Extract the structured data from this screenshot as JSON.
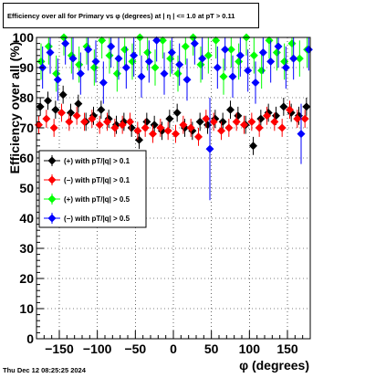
{
  "header": {
    "title": "Efficiency over all for Primary vs φ (degrees) at |   η  | <= 1.0 at pT > 0.11"
  },
  "footer": {
    "timestamp": "Thu Dec 12 08:25:25 2024"
  },
  "chart_data": {
    "type": "scatter",
    "title": "Efficiency over all for Primary vs φ (degrees) at |   η  | <= 1.0 at pT > 0.11",
    "xlabel": "φ (degrees)",
    "ylabel": "Efficiency over all (%)",
    "xlim": [
      -180,
      180
    ],
    "ylim": [
      0,
      100
    ],
    "x_ticks": [
      -150,
      -100,
      -50,
      0,
      50,
      100,
      150
    ],
    "x_tick_labels": [
      "−150",
      "−100",
      "−50",
      "0",
      "50",
      "100",
      "150"
    ],
    "y_ticks": [
      0,
      10,
      20,
      30,
      40,
      50,
      60,
      70,
      80,
      90,
      100
    ],
    "y_tick_labels": [
      "0",
      "10",
      "20",
      "30",
      "40",
      "50",
      "60",
      "70",
      "80",
      "90",
      "100"
    ],
    "grid": true,
    "legend_position": "left-middle",
    "series": [
      {
        "name": "(+) with pT/|q| > 0.1",
        "color": "#000000",
        "x": [
          -175,
          -165,
          -155,
          -145,
          -135,
          -125,
          -115,
          -105,
          -95,
          -85,
          -75,
          -65,
          -55,
          -45,
          -35,
          -25,
          -15,
          -5,
          5,
          15,
          25,
          35,
          45,
          55,
          65,
          75,
          85,
          95,
          105,
          115,
          125,
          135,
          145,
          155,
          165,
          175
        ],
        "y": [
          77,
          79,
          76,
          81,
          75,
          78,
          72,
          74,
          76,
          73,
          71,
          72,
          70,
          66,
          72,
          71,
          69,
          73,
          75,
          70,
          69,
          72,
          71,
          73,
          72,
          76,
          74,
          71,
          64,
          73,
          75,
          74,
          77,
          75,
          74,
          77
        ],
        "err": [
          3,
          3,
          3,
          3,
          3,
          3,
          3,
          3,
          3,
          3,
          3,
          3,
          3,
          3,
          3,
          3,
          3,
          3,
          3,
          3,
          3,
          3,
          3,
          3,
          3,
          3,
          3,
          3,
          3,
          3,
          3,
          3,
          3,
          3,
          3,
          3
        ]
      },
      {
        "name": "(−) with pT/|q| > 0.1",
        "color": "#ff0000",
        "x": [
          -177,
          -167,
          -157,
          -147,
          -137,
          -127,
          -117,
          -107,
          -97,
          -87,
          -77,
          -67,
          -57,
          -47,
          -37,
          -27,
          -17,
          -7,
          3,
          13,
          23,
          33,
          43,
          53,
          63,
          73,
          83,
          93,
          103,
          113,
          123,
          133,
          143,
          153,
          163,
          173
        ],
        "y": [
          71,
          73,
          70,
          75,
          72,
          74,
          72,
          73,
          71,
          72,
          70,
          71,
          72,
          69,
          70,
          68,
          70,
          69,
          68,
          71,
          70,
          67,
          73,
          72,
          69,
          70,
          72,
          71,
          72,
          70,
          74,
          72,
          70,
          76,
          73,
          73
        ],
        "err": [
          3,
          3,
          3,
          3,
          3,
          3,
          3,
          3,
          3,
          3,
          3,
          3,
          3,
          3,
          3,
          3,
          3,
          3,
          3,
          3,
          3,
          3,
          3,
          3,
          3,
          3,
          3,
          3,
          3,
          3,
          3,
          3,
          3,
          3,
          3,
          3
        ]
      },
      {
        "name": "(+) with pT/|q| > 0.5",
        "color": "#00ff00",
        "x": [
          -174,
          -164,
          -154,
          -144,
          -134,
          -124,
          -114,
          -104,
          -94,
          -84,
          -74,
          -64,
          -54,
          -44,
          -34,
          -24,
          -14,
          -4,
          6,
          16,
          26,
          36,
          46,
          56,
          66,
          76,
          86,
          96,
          106,
          116,
          126,
          136,
          146,
          156,
          166,
          176
        ],
        "y": [
          92,
          97,
          88,
          100,
          94,
          91,
          97,
          90,
          99,
          94,
          88,
          96,
          92,
          100,
          95,
          90,
          99,
          93,
          88,
          97,
          100,
          91,
          94,
          99,
          87,
          96,
          92,
          100,
          94,
          89,
          99,
          95,
          92,
          98,
          93,
          96
        ],
        "err": [
          6,
          6,
          6,
          6,
          6,
          6,
          6,
          6,
          6,
          6,
          6,
          6,
          6,
          6,
          6,
          6,
          6,
          6,
          6,
          6,
          6,
          6,
          6,
          6,
          6,
          6,
          6,
          6,
          6,
          6,
          6,
          6,
          6,
          6,
          6,
          6
        ]
      },
      {
        "name": "(−) with pT/|q| > 0.5",
        "color": "#0000ff",
        "x": [
          -172,
          -162,
          -152,
          -142,
          -132,
          -122,
          -112,
          -102,
          -92,
          -82,
          -72,
          -62,
          -52,
          -42,
          -32,
          -22,
          -12,
          -2,
          8,
          18,
          28,
          38,
          48,
          58,
          68,
          78,
          88,
          98,
          108,
          118,
          128,
          138,
          148,
          158,
          168,
          178
        ],
        "y": [
          90,
          95,
          86,
          98,
          93,
          88,
          96,
          92,
          85,
          97,
          93,
          90,
          94,
          87,
          92,
          99,
          88,
          95,
          91,
          86,
          98,
          93,
          63,
          90,
          96,
          87,
          94,
          89,
          85,
          95,
          92,
          97,
          90,
          93,
          68,
          96
        ],
        "err": [
          7,
          7,
          7,
          7,
          7,
          7,
          7,
          7,
          7,
          7,
          7,
          7,
          7,
          7,
          7,
          7,
          7,
          7,
          7,
          7,
          7,
          7,
          17,
          7,
          7,
          7,
          7,
          7,
          7,
          7,
          7,
          7,
          7,
          7,
          10,
          7
        ]
      }
    ]
  }
}
